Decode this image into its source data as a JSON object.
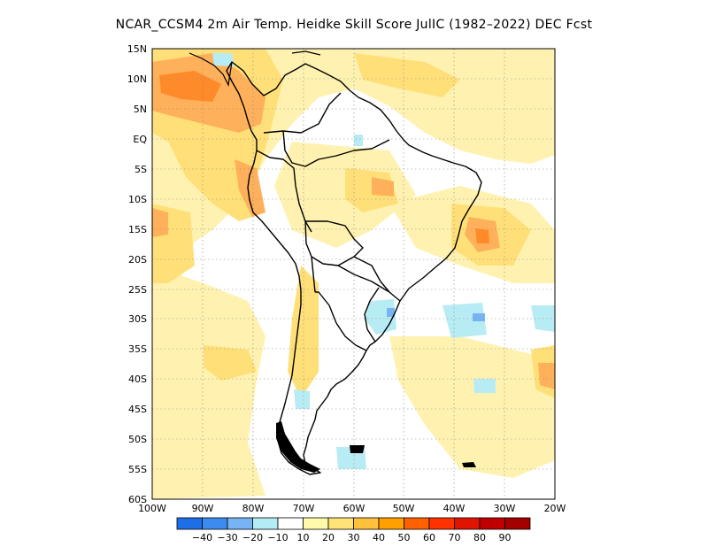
{
  "title": "NCAR_CCSM4  2m Air Temp. Heidke Skill Score JulIC (1982–2022) DEC Fcst",
  "lat_ticks": [
    "15N",
    "10N",
    "5N",
    "EQ",
    "5S",
    "10S",
    "15S",
    "20S",
    "25S",
    "30S",
    "35S",
    "40S",
    "45S",
    "50S",
    "55S",
    "60S"
  ],
  "lon_ticks": [
    "100W",
    "90W",
    "80W",
    "70W",
    "60W",
    "50W",
    "40W",
    "30W",
    "20W"
  ],
  "colorbar": {
    "labels": [
      "−40",
      "−30",
      "−20",
      "−10",
      "10",
      "20",
      "30",
      "40",
      "50",
      "60",
      "70",
      "80",
      "90"
    ],
    "colors": [
      "#1e6ee8",
      "#3c8cf0",
      "#78b4f4",
      "#b4ecf4",
      "#ffffff",
      "#fffaaa",
      "#ffe278",
      "#ffc03c",
      "#ffa000",
      "#ff6000",
      "#ff3200",
      "#e11400",
      "#c00000",
      "#a50000"
    ]
  },
  "colors": {
    "light_yellow": "#fff2b0",
    "yellow": "#ffe078",
    "light_orange": "#ffc86a",
    "orange": "#ffa040",
    "dark_orange": "#ff7a20",
    "cyan": "#b8ecf4",
    "blue": "#78b4f4",
    "coast": "#000000",
    "grid": "#888888"
  }
}
